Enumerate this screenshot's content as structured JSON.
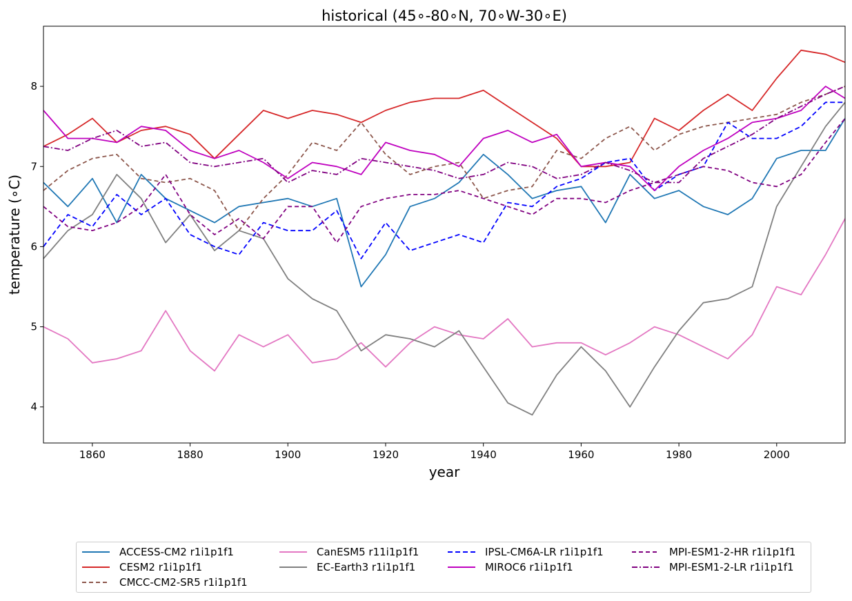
{
  "chart_data": {
    "type": "line",
    "title": "historical (45$^\\circ$-80$^\\circ$N, 70$^\\circ$W-30$^\\circ$E)",
    "title_display": "historical (45∘-80∘N, 70∘W-30∘E)",
    "xlabel": "year",
    "ylabel": "temperature (∘C)",
    "xlim": [
      1850,
      2014
    ],
    "ylim": [
      3.55,
      8.75
    ],
    "xticks": [
      1860,
      1880,
      1900,
      1920,
      1940,
      1960,
      1980,
      2000
    ],
    "yticks": [
      4,
      5,
      6,
      7,
      8
    ],
    "grid": false,
    "legend_placement": "bottom (below plot, 4 columns)",
    "x": [
      1850,
      1855,
      1860,
      1865,
      1870,
      1875,
      1880,
      1885,
      1890,
      1895,
      1900,
      1905,
      1910,
      1915,
      1920,
      1925,
      1930,
      1935,
      1940,
      1945,
      1950,
      1955,
      1960,
      1965,
      1970,
      1975,
      1980,
      1985,
      1990,
      1995,
      2000,
      2005,
      2010,
      2014
    ],
    "series": [
      {
        "name": "ACCESS-CM2 r1i1p1f1",
        "color": "#1f77b4",
        "dash": "solid",
        "values": [
          6.8,
          6.5,
          6.85,
          6.3,
          6.9,
          6.6,
          6.45,
          6.3,
          6.5,
          6.55,
          6.6,
          6.5,
          6.6,
          5.5,
          5.9,
          6.5,
          6.6,
          6.8,
          7.15,
          6.9,
          6.6,
          6.7,
          6.75,
          6.3,
          6.9,
          6.6,
          6.7,
          6.5,
          6.4,
          6.6,
          7.1,
          7.2,
          7.2,
          7.6
        ]
      },
      {
        "name": "CESM2 r1i1p1f1",
        "color": "#d62728",
        "dash": "solid",
        "values": [
          7.25,
          7.4,
          7.6,
          7.3,
          7.45,
          7.5,
          7.4,
          7.1,
          7.4,
          7.7,
          7.6,
          7.7,
          7.65,
          7.55,
          7.7,
          7.8,
          7.85,
          7.85,
          7.95,
          7.75,
          7.55,
          7.35,
          7.0,
          7.0,
          7.05,
          7.6,
          7.45,
          7.7,
          7.9,
          7.7,
          8.1,
          8.45,
          8.4,
          8.3
        ]
      },
      {
        "name": "CMCC-CM2-SR5 r1i1p1f1",
        "color": "#8c564b",
        "dash": "6,4",
        "values": [
          6.7,
          6.95,
          7.1,
          7.15,
          6.85,
          6.8,
          6.85,
          6.7,
          6.2,
          6.6,
          6.9,
          7.3,
          7.2,
          7.55,
          7.15,
          6.9,
          7.0,
          7.05,
          6.6,
          6.7,
          6.75,
          7.2,
          7.1,
          7.35,
          7.5,
          7.2,
          7.4,
          7.5,
          7.55,
          7.6,
          7.65,
          7.8,
          7.9,
          8.0
        ]
      },
      {
        "name": "CanESM5 r11i1p1f1",
        "color": "#e377c2",
        "dash": "solid",
        "values": [
          5.0,
          4.85,
          4.55,
          4.6,
          4.7,
          5.2,
          4.7,
          4.45,
          4.9,
          4.75,
          4.9,
          4.55,
          4.6,
          4.8,
          4.5,
          4.8,
          5.0,
          4.9,
          4.85,
          5.1,
          4.75,
          4.8,
          4.8,
          4.65,
          4.8,
          5.0,
          4.9,
          4.75,
          4.6,
          4.9,
          5.5,
          5.4,
          5.9,
          6.35
        ]
      },
      {
        "name": "EC-Earth3 r1i1p1f1",
        "color": "#7f7f7f",
        "dash": "solid",
        "values": [
          5.85,
          6.2,
          6.4,
          6.9,
          6.6,
          6.05,
          6.4,
          5.95,
          6.2,
          6.1,
          5.6,
          5.35,
          5.2,
          4.7,
          4.9,
          4.85,
          4.75,
          4.95,
          4.5,
          4.05,
          3.9,
          4.4,
          4.75,
          4.45,
          4.0,
          4.5,
          4.95,
          5.3,
          5.35,
          5.5,
          6.5,
          7.0,
          7.5,
          7.8
        ]
      },
      {
        "name": "IPSL-CM6A-LR r1i1p1f1",
        "color": "#0000ff",
        "dash": "7,4",
        "values": [
          6.0,
          6.4,
          6.25,
          6.65,
          6.4,
          6.6,
          6.15,
          6.0,
          5.9,
          6.3,
          6.2,
          6.2,
          6.45,
          5.85,
          6.3,
          5.95,
          6.05,
          6.15,
          6.05,
          6.55,
          6.5,
          6.75,
          6.85,
          7.05,
          7.1,
          6.7,
          6.9,
          7.0,
          7.55,
          7.35,
          7.35,
          7.5,
          7.8,
          7.8
        ]
      },
      {
        "name": "MIROC6 r1i1p1f1",
        "color": "#bf00bf",
        "dash": "solid",
        "values": [
          7.7,
          7.35,
          7.35,
          7.3,
          7.5,
          7.45,
          7.2,
          7.1,
          7.2,
          7.05,
          6.85,
          7.05,
          7.0,
          6.9,
          7.3,
          7.2,
          7.15,
          7.0,
          7.35,
          7.45,
          7.3,
          7.4,
          7.0,
          7.05,
          7.0,
          6.7,
          7.0,
          7.2,
          7.35,
          7.55,
          7.6,
          7.7,
          8.0,
          7.85
        ]
      },
      {
        "name": "MPI-ESM1-2-HR r1i1p1f1",
        "color": "#800080",
        "dash": "6,4",
        "values": [
          6.5,
          6.25,
          6.2,
          6.3,
          6.5,
          6.9,
          6.4,
          6.15,
          6.35,
          6.1,
          6.5,
          6.5,
          6.05,
          6.5,
          6.6,
          6.65,
          6.65,
          6.7,
          6.6,
          6.5,
          6.4,
          6.6,
          6.6,
          6.55,
          6.7,
          6.8,
          6.9,
          7.0,
          6.95,
          6.8,
          6.75,
          6.9,
          7.3,
          7.6
        ]
      },
      {
        "name": "MPI-ESM1-2-LR r1i1p1f1",
        "color": "#800080",
        "dash": "8,3,2,3",
        "values": [
          7.25,
          7.2,
          7.35,
          7.45,
          7.25,
          7.3,
          7.05,
          7.0,
          7.05,
          7.1,
          6.8,
          6.95,
          6.9,
          7.1,
          7.05,
          7.0,
          6.95,
          6.85,
          6.9,
          7.05,
          7.0,
          6.85,
          6.9,
          7.05,
          6.95,
          6.8,
          6.8,
          7.1,
          7.25,
          7.4,
          7.6,
          7.75,
          7.9,
          8.0
        ]
      }
    ]
  }
}
